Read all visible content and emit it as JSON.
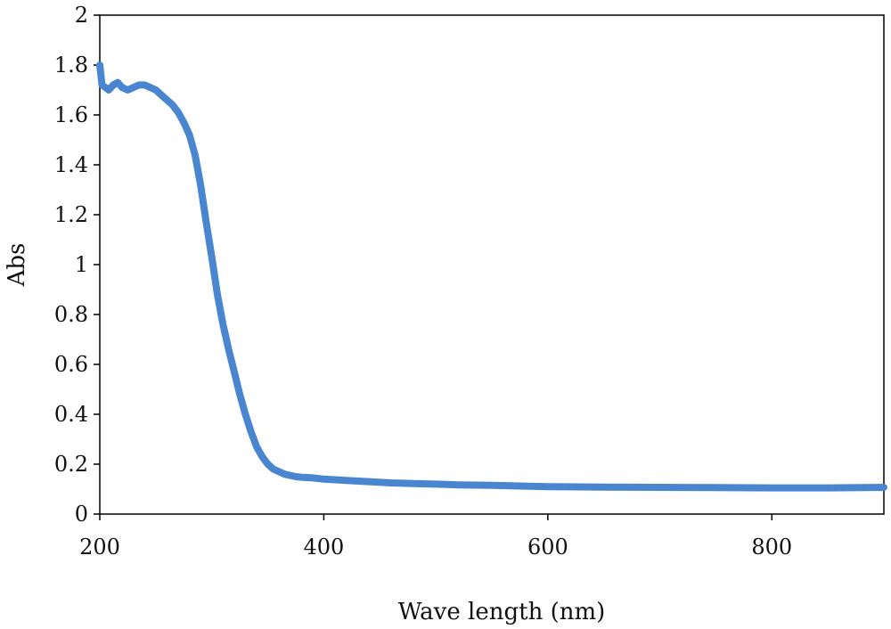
{
  "chart_data": {
    "type": "line",
    "title": "",
    "xlabel": "Wave length (nm)",
    "ylabel": "Abs",
    "xlim": [
      200,
      900
    ],
    "ylim": [
      0,
      2
    ],
    "x_ticks": [
      200,
      400,
      600,
      800
    ],
    "x_tick_labels": [
      "200",
      "400",
      "600",
      "800"
    ],
    "y_ticks": [
      0,
      0.2,
      0.4,
      0.6,
      0.8,
      1,
      1.2,
      1.4,
      1.6,
      1.8,
      2
    ],
    "y_tick_labels": [
      "0",
      "0.2",
      "0.4",
      "0.6",
      "0.8",
      "1",
      "1.2",
      "1.4",
      "1.6",
      "1.8",
      "2"
    ],
    "grid": false,
    "legend": "none",
    "series": [
      {
        "color": "#4a86cf",
        "x": [
          200,
          202,
          205,
          208,
          212,
          216,
          220,
          225,
          230,
          235,
          240,
          245,
          250,
          255,
          260,
          265,
          270,
          275,
          280,
          285,
          290,
          295,
          300,
          305,
          310,
          315,
          320,
          325,
          330,
          335,
          340,
          345,
          350,
          355,
          360,
          365,
          370,
          375,
          380,
          390,
          400,
          420,
          440,
          460,
          480,
          500,
          520,
          550,
          600,
          650,
          700,
          750,
          800,
          850,
          900
        ],
        "y": [
          1.8,
          1.72,
          1.71,
          1.7,
          1.72,
          1.73,
          1.71,
          1.7,
          1.71,
          1.72,
          1.72,
          1.71,
          1.7,
          1.68,
          1.66,
          1.64,
          1.61,
          1.57,
          1.52,
          1.44,
          1.32,
          1.17,
          1.03,
          0.88,
          0.76,
          0.66,
          0.57,
          0.48,
          0.4,
          0.33,
          0.27,
          0.23,
          0.2,
          0.18,
          0.17,
          0.16,
          0.155,
          0.15,
          0.148,
          0.145,
          0.14,
          0.135,
          0.13,
          0.125,
          0.122,
          0.12,
          0.117,
          0.115,
          0.11,
          0.108,
          0.107,
          0.106,
          0.105,
          0.105,
          0.107
        ]
      }
    ]
  }
}
